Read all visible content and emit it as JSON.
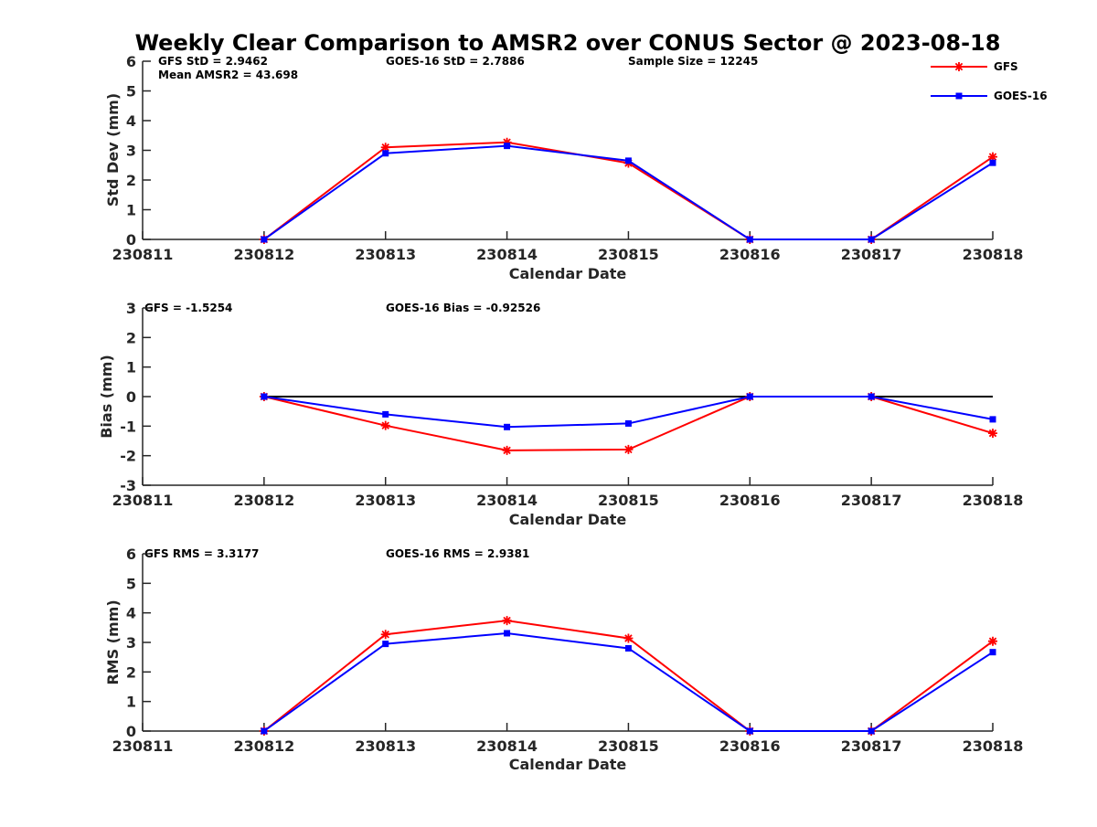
{
  "chart_data": {
    "type": "line",
    "title": "Weekly Clear Comparison to AMSR2 over CONUS Sector @ 2023-08-18",
    "x_tick_labels": [
      "230811",
      "230812",
      "230813",
      "230814",
      "230815",
      "230816",
      "230817",
      "230818"
    ],
    "x_values": [
      230812,
      230813,
      230814,
      230815,
      230816,
      230817,
      230818
    ],
    "xlim": [
      230811,
      230818
    ],
    "legend": {
      "placement": "top-right",
      "entries": [
        {
          "name": "GFS",
          "color": "#ff0000",
          "marker": "asterisk"
        },
        {
          "name": "GOES-16",
          "color": "#0000ff",
          "marker": "square"
        }
      ]
    },
    "panels": [
      {
        "id": "std",
        "xlabel": "Calendar Date",
        "ylabel": "Std Dev (mm)",
        "ylim": [
          0,
          6
        ],
        "yticks": [
          0,
          1,
          2,
          3,
          4,
          5,
          6
        ],
        "annotations": {
          "gfs": "GFS StD = 2.9462",
          "goes": "GOES-16 StD = 2.7886",
          "sample": "Sample Size = 12245",
          "mean": "Mean AMSR2 = 43.698"
        },
        "zero_line": false,
        "series": [
          {
            "name": "GFS",
            "color": "#ff0000",
            "marker": "asterisk",
            "values": [
              0,
              3.1,
              3.27,
              2.57,
              0,
              0,
              2.78
            ]
          },
          {
            "name": "GOES-16",
            "color": "#0000ff",
            "marker": "square",
            "values": [
              0,
              2.9,
              3.15,
              2.65,
              0,
              0,
              2.58
            ]
          }
        ]
      },
      {
        "id": "bias",
        "xlabel": "Calendar Date",
        "ylabel": "Bias (mm)",
        "ylim": [
          -3,
          3
        ],
        "yticks": [
          -3,
          -2,
          -1,
          0,
          1,
          2,
          3
        ],
        "annotations": {
          "gfs": "GFS = -1.5254",
          "goes": "GOES-16 Bias  = -0.92526"
        },
        "zero_line": true,
        "series": [
          {
            "name": "GFS",
            "color": "#ff0000",
            "marker": "asterisk",
            "values": [
              0,
              -0.98,
              -1.82,
              -1.79,
              0,
              0,
              -1.24
            ]
          },
          {
            "name": "GOES-16",
            "color": "#0000ff",
            "marker": "square",
            "values": [
              0,
              -0.6,
              -1.03,
              -0.91,
              0,
              0,
              -0.77
            ]
          }
        ]
      },
      {
        "id": "rms",
        "xlabel": "Calendar Date",
        "ylabel": "RMS (mm)",
        "ylim": [
          0,
          6
        ],
        "yticks": [
          0,
          1,
          2,
          3,
          4,
          5,
          6
        ],
        "annotations": {
          "gfs": "GFS RMS = 3.3177",
          "goes": "GOES-16 RMS = 2.9381"
        },
        "zero_line": false,
        "series": [
          {
            "name": "GFS",
            "color": "#ff0000",
            "marker": "asterisk",
            "values": [
              0,
              3.27,
              3.74,
              3.14,
              0,
              0,
              3.04
            ]
          },
          {
            "name": "GOES-16",
            "color": "#0000ff",
            "marker": "square",
            "values": [
              0,
              2.95,
              3.31,
              2.8,
              0,
              0,
              2.67
            ]
          }
        ]
      }
    ]
  }
}
